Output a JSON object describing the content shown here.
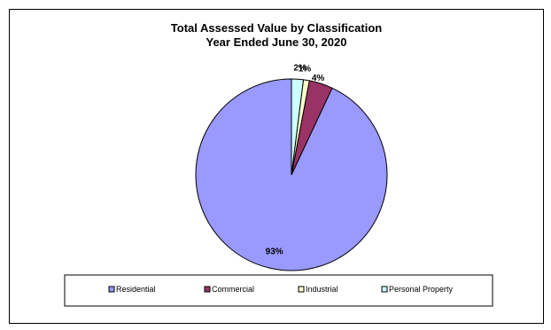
{
  "chart_data": {
    "type": "pie",
    "title": "Total Assessed Value by Classification",
    "subtitle": "Year Ended June 30, 2020",
    "categories": [
      "Residential",
      "Commercial",
      "Industrial",
      "Personal Property"
    ],
    "values": [
      93,
      4,
      1,
      2
    ],
    "labels": [
      "93%",
      "4%",
      "1%",
      "2%"
    ],
    "colors": [
      "#9999FF",
      "#993366",
      "#FFFFCC",
      "#CCFFFF"
    ],
    "legend_position": "bottom",
    "start_angle": "12 o'clock, clockwise reversed (counter-clockwise)"
  }
}
